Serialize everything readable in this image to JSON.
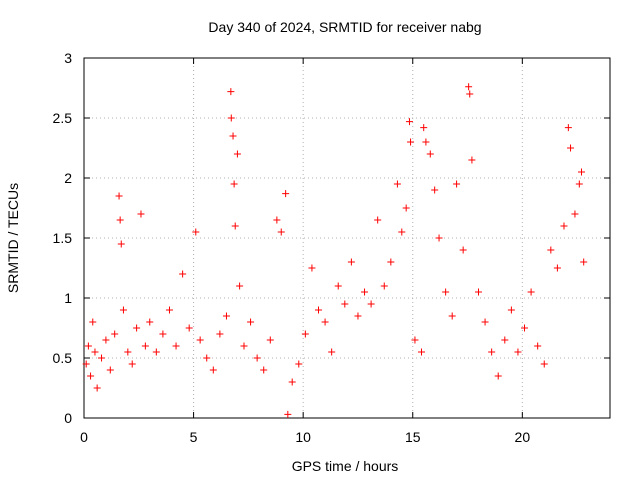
{
  "chart_data": {
    "type": "scatter",
    "title": "Day 340 of 2024, SRMTID for receiver nabg",
    "xlabel": "GPS time / hours",
    "ylabel": "SRMTID / TECUs",
    "xlim": [
      0,
      24
    ],
    "ylim": [
      0,
      3
    ],
    "xticks": [
      0,
      5,
      10,
      15,
      20
    ],
    "yticks": [
      0,
      0.5,
      1,
      1.5,
      2,
      2.5,
      3
    ],
    "xtick_labels": [
      "0",
      "5",
      "10",
      "15",
      "20"
    ],
    "ytick_labels": [
      "0",
      "0.5",
      "1",
      "1.5",
      "2",
      "2.5",
      "3"
    ],
    "grid": true,
    "marker": "+",
    "color": "#ff0000",
    "series": [
      {
        "name": "SRMTID",
        "points": [
          [
            0.1,
            0.45
          ],
          [
            0.2,
            0.6
          ],
          [
            0.3,
            0.35
          ],
          [
            0.4,
            0.8
          ],
          [
            0.5,
            0.55
          ],
          [
            0.6,
            0.25
          ],
          [
            0.8,
            0.5
          ],
          [
            1.0,
            0.65
          ],
          [
            1.2,
            0.4
          ],
          [
            1.4,
            0.7
          ],
          [
            1.6,
            1.85
          ],
          [
            1.65,
            1.65
          ],
          [
            1.7,
            1.45
          ],
          [
            1.8,
            0.9
          ],
          [
            2.0,
            0.55
          ],
          [
            2.2,
            0.45
          ],
          [
            2.4,
            0.75
          ],
          [
            2.6,
            1.7
          ],
          [
            2.8,
            0.6
          ],
          [
            3.0,
            0.8
          ],
          [
            3.3,
            0.55
          ],
          [
            3.6,
            0.7
          ],
          [
            3.9,
            0.9
          ],
          [
            4.2,
            0.6
          ],
          [
            4.5,
            1.2
          ],
          [
            4.8,
            0.75
          ],
          [
            5.1,
            1.55
          ],
          [
            5.3,
            0.65
          ],
          [
            5.6,
            0.5
          ],
          [
            5.9,
            0.4
          ],
          [
            6.2,
            0.7
          ],
          [
            6.5,
            0.85
          ],
          [
            6.7,
            2.72
          ],
          [
            6.72,
            2.5
          ],
          [
            6.8,
            2.35
          ],
          [
            6.85,
            1.95
          ],
          [
            6.9,
            1.6
          ],
          [
            7.0,
            2.2
          ],
          [
            7.1,
            1.1
          ],
          [
            7.3,
            0.6
          ],
          [
            7.6,
            0.8
          ],
          [
            7.9,
            0.5
          ],
          [
            8.2,
            0.4
          ],
          [
            8.5,
            0.65
          ],
          [
            8.8,
            1.65
          ],
          [
            9.0,
            1.55
          ],
          [
            9.2,
            1.87
          ],
          [
            9.3,
            0.03
          ],
          [
            9.5,
            0.3
          ],
          [
            9.8,
            0.45
          ],
          [
            10.1,
            0.7
          ],
          [
            10.4,
            1.25
          ],
          [
            10.7,
            0.9
          ],
          [
            11.0,
            0.8
          ],
          [
            11.3,
            0.55
          ],
          [
            11.6,
            1.1
          ],
          [
            11.9,
            0.95
          ],
          [
            12.2,
            1.3
          ],
          [
            12.5,
            0.85
          ],
          [
            12.8,
            1.05
          ],
          [
            13.1,
            0.95
          ],
          [
            13.4,
            1.65
          ],
          [
            13.7,
            1.1
          ],
          [
            14.0,
            1.3
          ],
          [
            14.3,
            1.95
          ],
          [
            14.5,
            1.55
          ],
          [
            14.7,
            1.75
          ],
          [
            14.85,
            2.47
          ],
          [
            14.9,
            2.3
          ],
          [
            15.1,
            0.65
          ],
          [
            15.4,
            0.55
          ],
          [
            15.5,
            2.42
          ],
          [
            15.6,
            2.3
          ],
          [
            15.8,
            2.2
          ],
          [
            16.0,
            1.9
          ],
          [
            16.2,
            1.5
          ],
          [
            16.5,
            1.05
          ],
          [
            16.8,
            0.85
          ],
          [
            17.0,
            1.95
          ],
          [
            17.3,
            1.4
          ],
          [
            17.55,
            2.76
          ],
          [
            17.6,
            2.7
          ],
          [
            17.7,
            2.15
          ],
          [
            18.0,
            1.05
          ],
          [
            18.3,
            0.8
          ],
          [
            18.6,
            0.55
          ],
          [
            18.9,
            0.35
          ],
          [
            19.2,
            0.65
          ],
          [
            19.5,
            0.9
          ],
          [
            19.8,
            0.55
          ],
          [
            20.1,
            0.75
          ],
          [
            20.4,
            1.05
          ],
          [
            20.7,
            0.6
          ],
          [
            21.0,
            0.45
          ],
          [
            21.3,
            1.4
          ],
          [
            21.6,
            1.25
          ],
          [
            21.9,
            1.6
          ],
          [
            22.1,
            2.42
          ],
          [
            22.2,
            2.25
          ],
          [
            22.4,
            1.7
          ],
          [
            22.6,
            1.95
          ],
          [
            22.7,
            2.05
          ],
          [
            22.8,
            1.3
          ]
        ]
      }
    ]
  }
}
